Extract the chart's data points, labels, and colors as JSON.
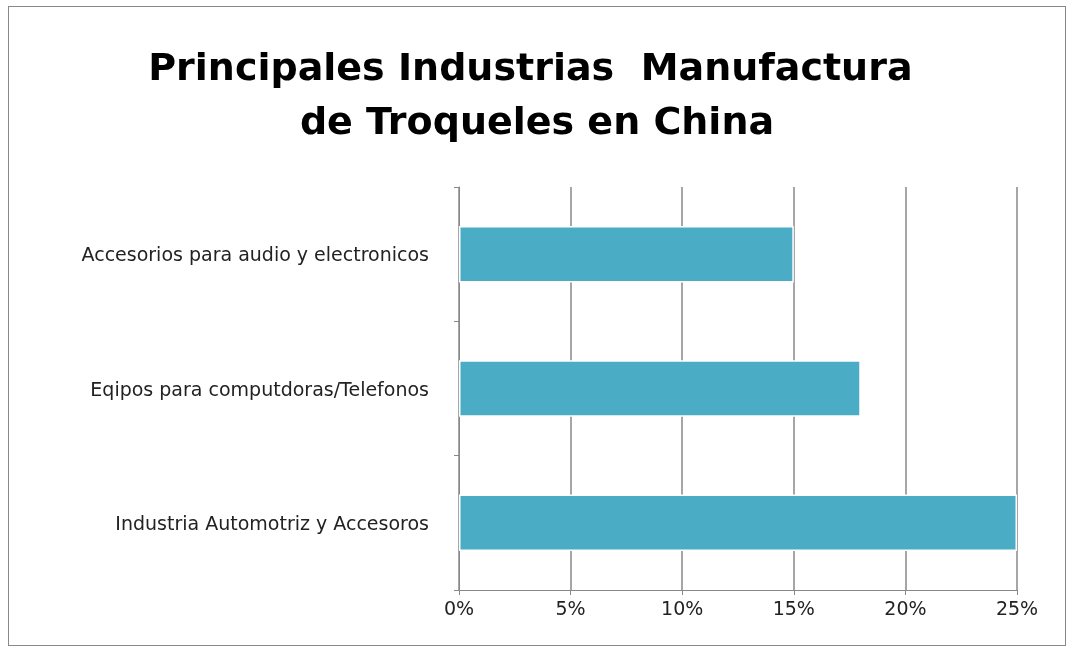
{
  "chart_data": {
    "type": "bar",
    "orientation": "horizontal",
    "title": "Principales Industrias  Manufactura de Troqueles en China",
    "categories": [
      "Accesorios para audio y electronicos",
      "Eqipos para computdoras/Telefonos",
      "Industria Automotriz y Accesoros"
    ],
    "values": [
      15,
      18,
      25
    ],
    "color": "#4bacc6",
    "xlim": [
      0,
      25
    ],
    "xticks": [
      {
        "value": 0,
        "label": "0%"
      },
      {
        "value": 5,
        "label": "5%"
      },
      {
        "value": 10,
        "label": "10%"
      },
      {
        "value": 15,
        "label": "15%"
      },
      {
        "value": 20,
        "label": "20%"
      },
      {
        "value": 25,
        "label": "25%"
      }
    ],
    "grid": "x"
  }
}
